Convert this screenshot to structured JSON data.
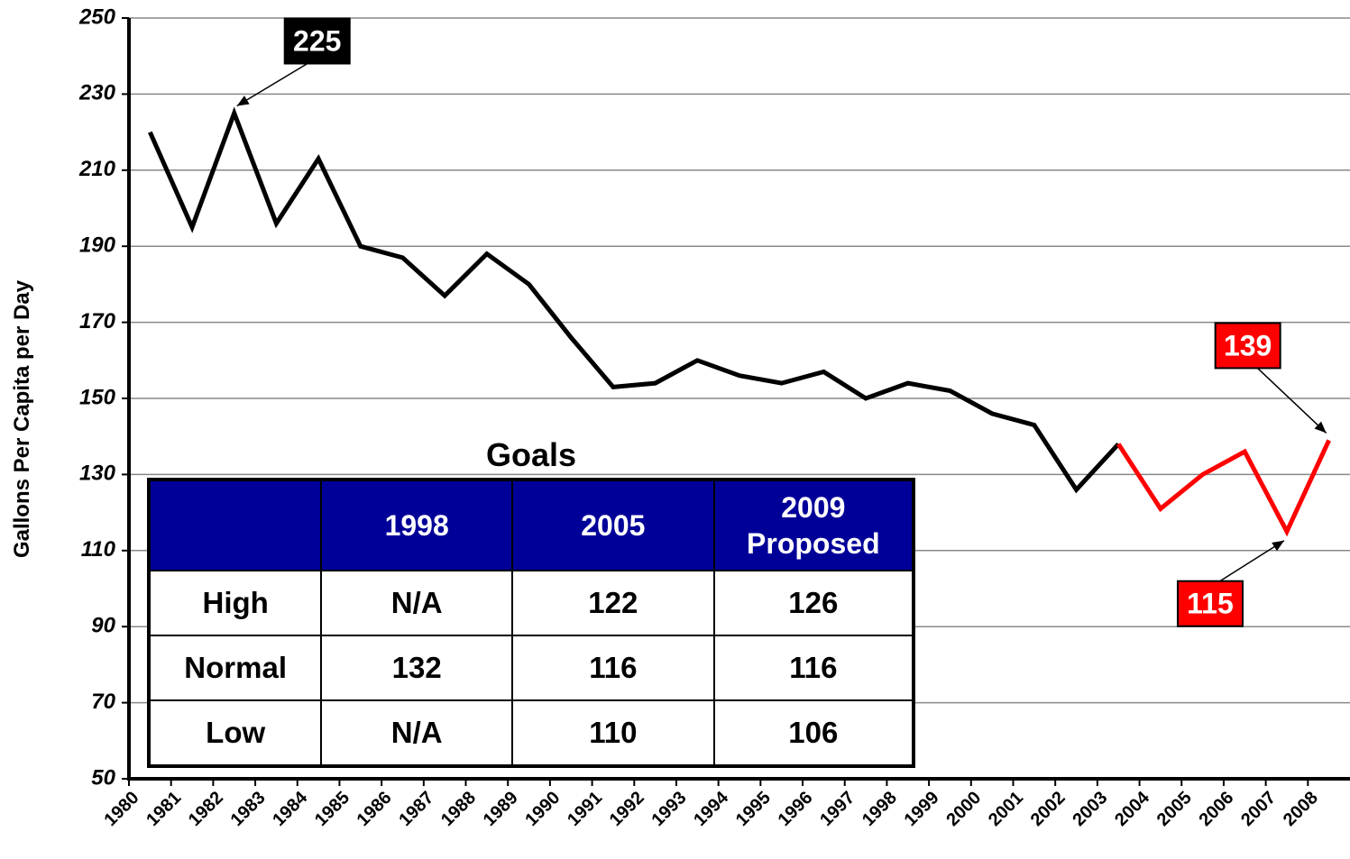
{
  "chart_data": {
    "type": "line",
    "y_label": "Gallons Per Capita per Day",
    "categories": [
      "1980",
      "1981",
      "1982",
      "1983",
      "1984",
      "1985",
      "1986",
      "1987",
      "1988",
      "1989",
      "1990",
      "1991",
      "1992",
      "1993",
      "1994",
      "1995",
      "1996",
      "1997",
      "1998",
      "1999",
      "2000",
      "2001",
      "2002",
      "2003",
      "2004",
      "2005",
      "2006",
      "2007",
      "2008"
    ],
    "series": [
      {
        "color": "#000000",
        "values": [
          220,
          195,
          225,
          196,
          213,
          190,
          187,
          177,
          188,
          180,
          166,
          153,
          154,
          160,
          156,
          154,
          157,
          150,
          154,
          152,
          146,
          143,
          126,
          138,
          null,
          null,
          null,
          null,
          null
        ]
      },
      {
        "color": "#ff0000",
        "values": [
          null,
          null,
          null,
          null,
          null,
          null,
          null,
          null,
          null,
          null,
          null,
          null,
          null,
          null,
          null,
          null,
          null,
          null,
          null,
          null,
          null,
          null,
          null,
          138,
          121,
          130,
          136,
          115,
          139
        ]
      }
    ],
    "ylim": [
      50,
      250
    ],
    "yticks": [
      50,
      70,
      90,
      110,
      130,
      150,
      170,
      190,
      210,
      230,
      250
    ],
    "grid": true,
    "annotations": [
      {
        "label": "225",
        "x": "1982",
        "color": "#000000"
      },
      {
        "label": "139",
        "x": "2008",
        "color": "#ff0000"
      },
      {
        "label": "115",
        "x": "2007",
        "color": "#ff0000"
      }
    ]
  },
  "table": {
    "title": "Goals",
    "columns": [
      "1998",
      "2005",
      "2009 Proposed"
    ],
    "rows": [
      [
        "High",
        "N/A",
        "122",
        "126"
      ],
      [
        "Normal",
        "132",
        "116",
        "116"
      ],
      [
        "Low",
        "N/A",
        "110",
        "106"
      ]
    ]
  }
}
